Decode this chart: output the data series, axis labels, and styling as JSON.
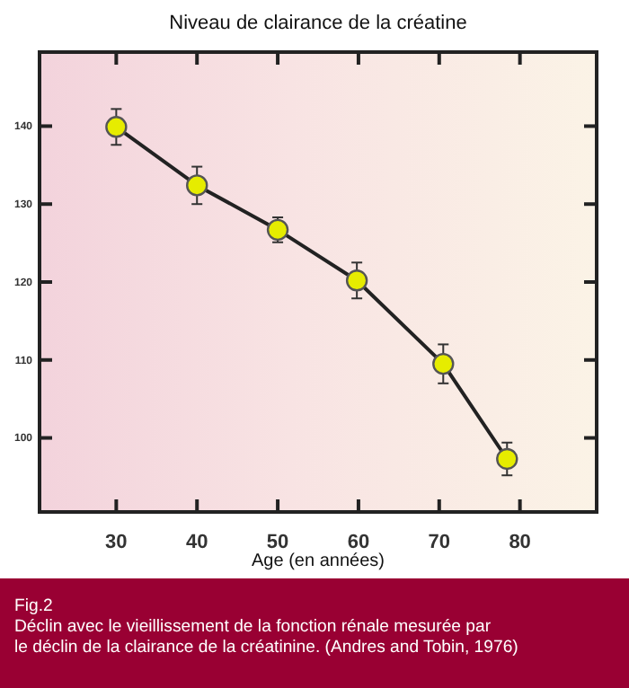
{
  "chart_data": {
    "type": "line",
    "title": "Niveau de clairance de la créatine",
    "xlabel": "Age (en années)",
    "x": [
      30,
      40,
      50,
      59.8,
      70.5,
      78.4
    ],
    "series": [
      {
        "color": "#222222",
        "values": [
          139.9,
          132.4,
          126.7,
          120.2,
          109.5,
          97.3
        ],
        "errors": [
          2.3,
          2.4,
          1.6,
          2.3,
          2.5,
          2.1
        ]
      }
    ],
    "marker": "circle",
    "line_style": "solid",
    "xlim": [
      20.5,
      89.5
    ],
    "xticks": [
      30,
      40,
      50,
      60,
      70,
      80
    ],
    "ylim": [
      90.5,
      149.5
    ],
    "yticks": [
      100,
      110,
      120,
      130,
      140
    ],
    "annotations": [
      "Fig.2",
      "Déclin avec le vieillissement de la fonction rénale mesurée par",
      "le déclin de la clairance de la créatinine. (Andres and Tobin, 1976)"
    ]
  }
}
